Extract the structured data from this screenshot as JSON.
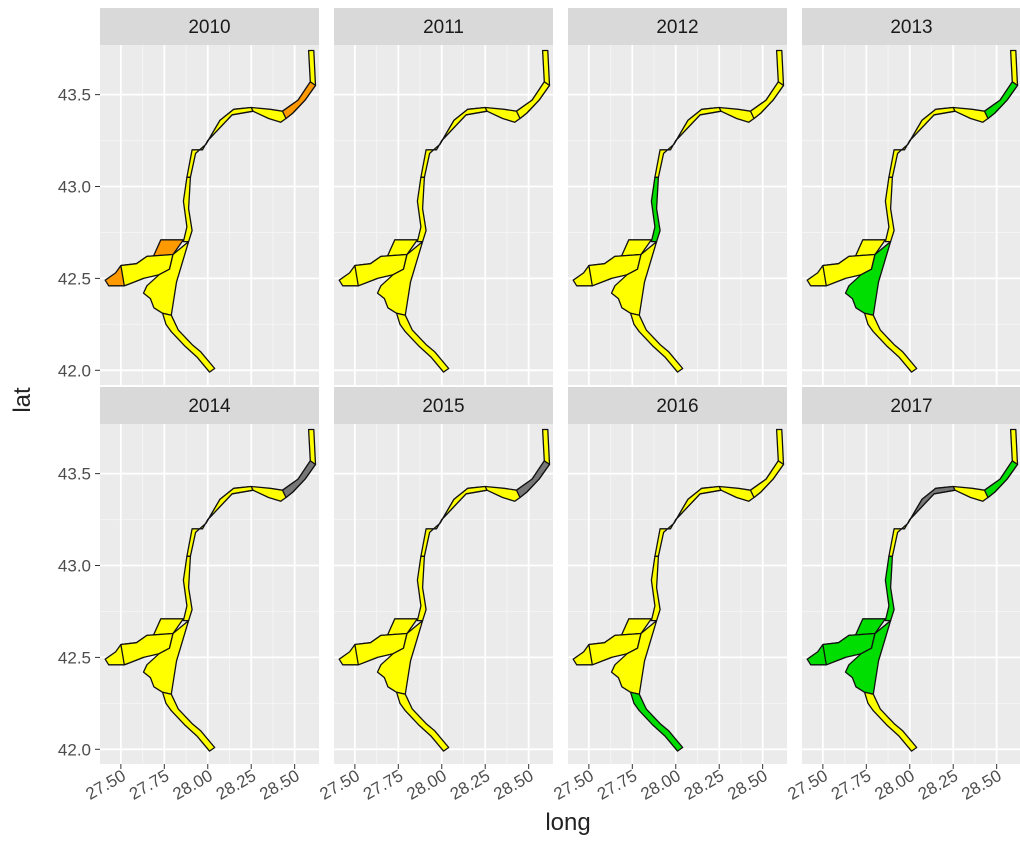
{
  "figure": {
    "x_axis_title": "long",
    "y_axis_title": "lat",
    "x_ticks": [
      "27.50",
      "27.75",
      "28.00",
      "28.25",
      "28.50"
    ],
    "y_ticks": [
      "42.0",
      "42.5",
      "43.0",
      "43.5"
    ],
    "panels": [
      {
        "year": "2010",
        "colors": {
          "upper": "#ffff00",
          "ne": "#ff9900",
          "mid": "#ffff00",
          "river": "#ffff00",
          "estuary_n": "#ff9900",
          "estuary_s": "#ffff00",
          "delta": "#ffff00",
          "south": "#ffff00"
        }
      },
      {
        "year": "2011",
        "colors": {
          "upper": "#ffff00",
          "ne": "#ffff00",
          "mid": "#ffff00",
          "river": "#ffff00",
          "estuary_n": "#ffff00",
          "estuary_s": "#ffff00",
          "delta": "#ffff00",
          "south": "#ffff00"
        }
      },
      {
        "year": "2012",
        "colors": {
          "upper": "#ffff00",
          "ne": "#ffff00",
          "mid": "#ffff00",
          "river": "#00dd00",
          "estuary_n": "#ffff00",
          "estuary_s": "#ffff00",
          "delta": "#ffff00",
          "south": "#ffff00"
        }
      },
      {
        "year": "2013",
        "colors": {
          "upper": "#ffff00",
          "ne": "#00dd00",
          "mid": "#ffff00",
          "river": "#ffff00",
          "estuary_n": "#ffff00",
          "estuary_s": "#ffff00",
          "delta": "#00dd00",
          "south": "#ffff00"
        }
      },
      {
        "year": "2014",
        "colors": {
          "upper": "#ffff00",
          "ne": "#777777",
          "mid": "#ffff00",
          "river": "#ffff00",
          "estuary_n": "#ffff00",
          "estuary_s": "#ffff00",
          "delta": "#ffff00",
          "south": "#ffff00"
        }
      },
      {
        "year": "2015",
        "colors": {
          "upper": "#ffff00",
          "ne": "#777777",
          "mid": "#ffff00",
          "river": "#ffff00",
          "estuary_n": "#ffff00",
          "estuary_s": "#ffff00",
          "delta": "#ffff00",
          "south": "#ffff00"
        }
      },
      {
        "year": "2016",
        "colors": {
          "upper": "#ffff00",
          "ne": "#ffff00",
          "mid": "#ffff00",
          "river": "#ffff00",
          "estuary_n": "#ffff00",
          "estuary_s": "#ffff00",
          "delta": "#ffff00",
          "south": "#00dd00"
        }
      },
      {
        "year": "2017",
        "colors": {
          "upper": "#ffff00",
          "ne": "#00dd00",
          "mid": "#777777",
          "river": "#00dd00",
          "estuary_n": "#00dd00",
          "estuary_s": "#00dd00",
          "delta": "#00dd00",
          "south": "#ffff00"
        }
      }
    ]
  }
}
